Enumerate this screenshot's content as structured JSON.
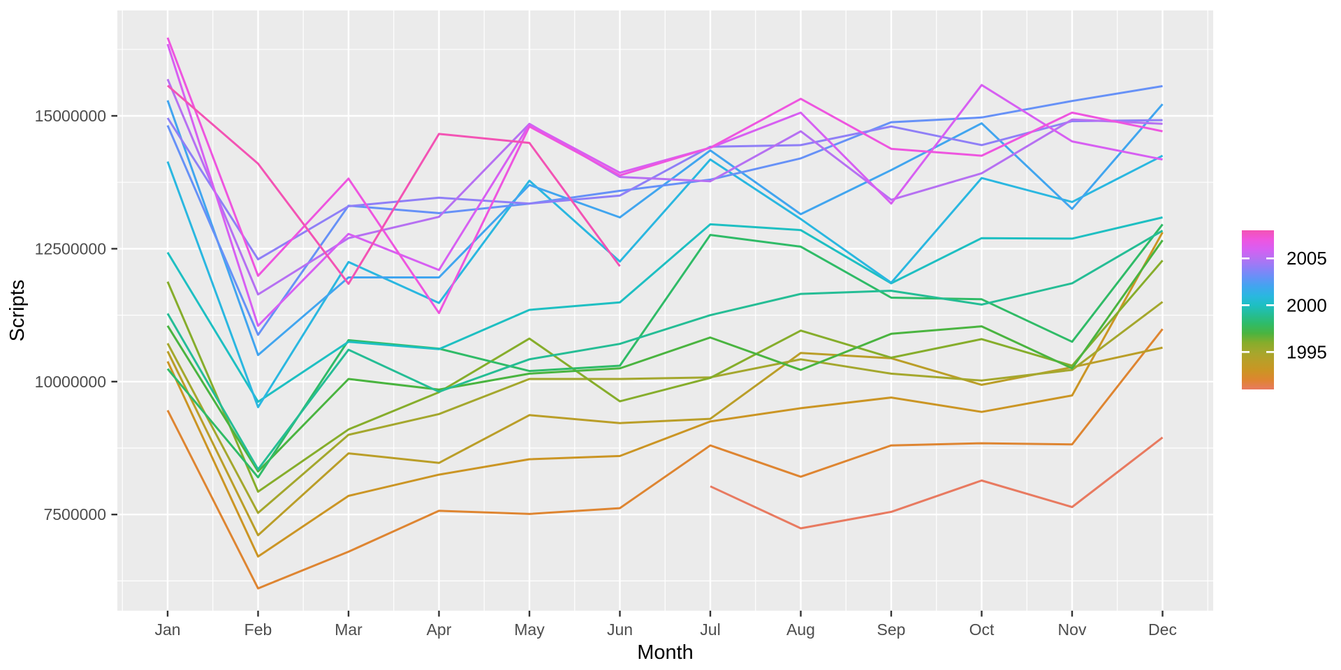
{
  "chart_data": {
    "type": "line",
    "title": "",
    "xlabel": "Month",
    "ylabel": "Scripts",
    "x_categories": [
      "Jan",
      "Feb",
      "Mar",
      "Apr",
      "May",
      "Jun",
      "Jul",
      "Aug",
      "Sep",
      "Oct",
      "Nov",
      "Dec"
    ],
    "y_ticks": [
      7500000,
      10000000,
      12500000,
      15000000
    ],
    "y_tick_labels": [
      "7500000",
      "10000000",
      "12500000",
      "15000000"
    ],
    "ylim": [
      5700000,
      17000000
    ],
    "grid": {
      "major": true,
      "minor": true,
      "color": "#FFFFFF"
    },
    "panel_background": "#EBEBEB",
    "tick_label_color": "#4D4D4D",
    "axis_title_color": "#000000",
    "tick_mark_color": "#333333",
    "legend": {
      "position": "right",
      "type": "gradient-colorbar",
      "min_year": 1991,
      "max_year": 2008,
      "tick_labels": [
        {
          "text": "2005",
          "year": 2005
        },
        {
          "text": "2000",
          "year": 2000
        },
        {
          "text": "1995",
          "year": 1995
        }
      ]
    },
    "series": [
      {
        "name": "1991",
        "year": 1991,
        "color": "#E87A60",
        "values": [
          null,
          null,
          null,
          null,
          null,
          null,
          8030000,
          7240000,
          7550000,
          8140000,
          7640000,
          8950000
        ]
      },
      {
        "name": "1992",
        "year": 1992,
        "color": "#DE8531",
        "values": [
          9460000,
          6110000,
          6800000,
          7570000,
          7510000,
          7620000,
          8800000,
          8210000,
          8800000,
          8840000,
          8820000,
          10990000
        ]
      },
      {
        "name": "1993",
        "year": 1993,
        "color": "#CB9524",
        "values": [
          10380000,
          6710000,
          7850000,
          8250000,
          8540000,
          8600000,
          9250000,
          9500000,
          9700000,
          9430000,
          9740000,
          12810000
        ]
      },
      {
        "name": "1994",
        "year": 1994,
        "color": "#BA9E28",
        "values": [
          10570000,
          7110000,
          8650000,
          8470000,
          9370000,
          9220000,
          9300000,
          10540000,
          10440000,
          9940000,
          10270000,
          10640000
        ]
      },
      {
        "name": "1995",
        "year": 1995,
        "color": "#A4A72D",
        "values": [
          10720000,
          7530000,
          9000000,
          9390000,
          10050000,
          10050000,
          10080000,
          10420000,
          10150000,
          10020000,
          10220000,
          11500000
        ]
      },
      {
        "name": "1996",
        "year": 1996,
        "color": "#86AD2B",
        "values": [
          11880000,
          7930000,
          9100000,
          9800000,
          10810000,
          9630000,
          10070000,
          10960000,
          10450000,
          10800000,
          10300000,
          12280000
        ]
      },
      {
        "name": "1997",
        "year": 1997,
        "color": "#4AB440",
        "values": [
          11050000,
          8310000,
          10050000,
          9850000,
          10150000,
          10250000,
          10830000,
          10220000,
          10900000,
          11040000,
          10250000,
          12660000
        ]
      },
      {
        "name": "1998",
        "year": 1998,
        "color": "#2FBB67",
        "values": [
          10240000,
          8200000,
          10780000,
          10620000,
          10200000,
          10300000,
          12760000,
          12540000,
          11580000,
          11550000,
          10750000,
          12960000
        ]
      },
      {
        "name": "1999",
        "year": 1999,
        "color": "#25BD95",
        "values": [
          11280000,
          8350000,
          10600000,
          9810000,
          10420000,
          10710000,
          11250000,
          11650000,
          11710000,
          11450000,
          11850000,
          12840000
        ]
      },
      {
        "name": "2000",
        "year": 2000,
        "color": "#1EBFC2",
        "values": [
          12430000,
          9620000,
          10750000,
          10610000,
          11350000,
          11490000,
          12960000,
          12850000,
          11850000,
          12700000,
          12690000,
          13090000
        ]
      },
      {
        "name": "2001",
        "year": 2001,
        "color": "#2AB7E0",
        "values": [
          14140000,
          9520000,
          12250000,
          11480000,
          13780000,
          12260000,
          14180000,
          13060000,
          11860000,
          13830000,
          13380000,
          14250000
        ]
      },
      {
        "name": "2002",
        "year": 2002,
        "color": "#41A5EF",
        "values": [
          15290000,
          10500000,
          11960000,
          11960000,
          13700000,
          13090000,
          14350000,
          13150000,
          13980000,
          14860000,
          13250000,
          15220000
        ]
      },
      {
        "name": "2003",
        "year": 2003,
        "color": "#6691F7",
        "values": [
          14820000,
          10880000,
          13310000,
          13170000,
          13350000,
          13590000,
          13800000,
          14200000,
          14880000,
          14970000,
          15280000,
          15560000
        ]
      },
      {
        "name": "2004",
        "year": 2004,
        "color": "#8F7FF7",
        "values": [
          14960000,
          12300000,
          13300000,
          13460000,
          13350000,
          13500000,
          14420000,
          14450000,
          14800000,
          14450000,
          14900000,
          14920000
        ]
      },
      {
        "name": "2005",
        "year": 2005,
        "color": "#B670F2",
        "values": [
          15690000,
          11640000,
          12700000,
          13100000,
          14850000,
          13850000,
          13770000,
          14710000,
          13420000,
          13920000,
          14930000,
          14850000
        ]
      },
      {
        "name": "2006",
        "year": 2006,
        "color": "#D75FF2",
        "values": [
          16350000,
          11050000,
          12780000,
          12100000,
          14840000,
          13930000,
          14400000,
          15060000,
          13350000,
          15580000,
          14520000,
          14180000
        ]
      },
      {
        "name": "2007",
        "year": 2007,
        "color": "#EE55DF",
        "values": [
          16470000,
          11990000,
          13820000,
          11290000,
          14800000,
          13880000,
          14400000,
          15320000,
          14380000,
          14250000,
          15060000,
          14710000
        ]
      },
      {
        "name": "2008",
        "year": 2008,
        "color": "#F353B4",
        "values": [
          15570000,
          14100000,
          11840000,
          14660000,
          14490000,
          12170000,
          null,
          null,
          null,
          null,
          null,
          null
        ]
      }
    ]
  }
}
